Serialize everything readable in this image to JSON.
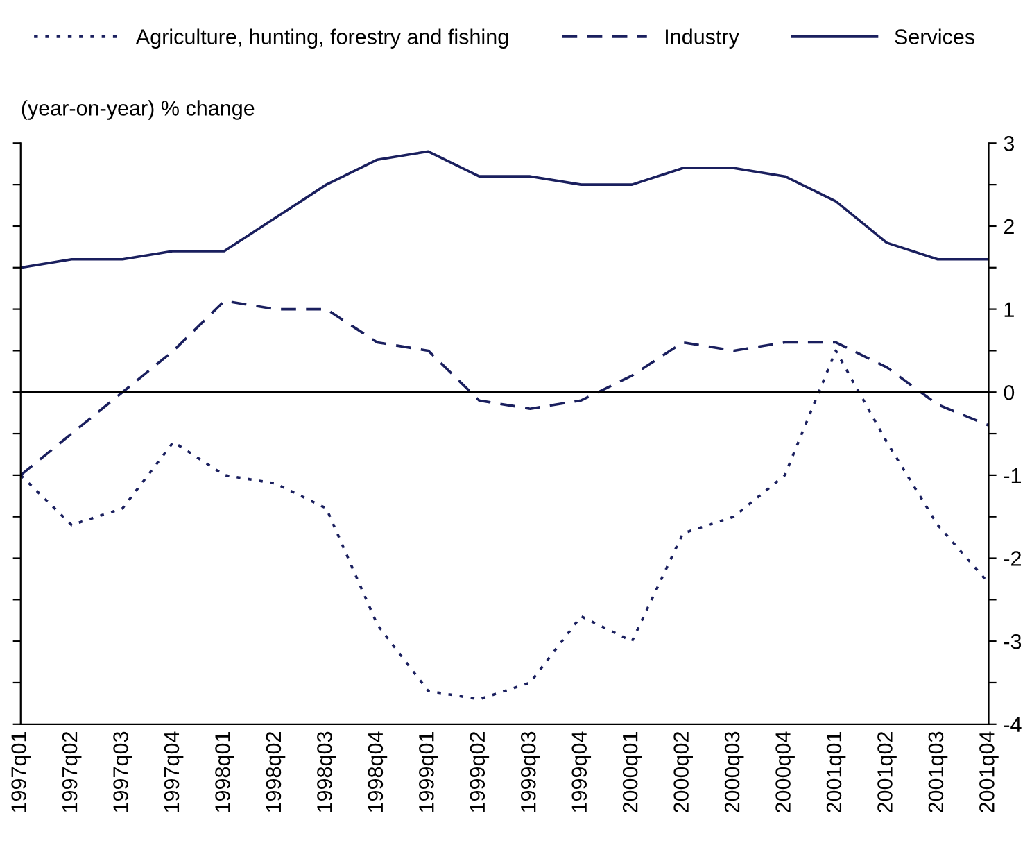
{
  "chart_data": {
    "type": "line",
    "ylabel": "(year-on-year) % change",
    "categories": [
      "1997q01",
      "1997q02",
      "1997q03",
      "1997q04",
      "1998q01",
      "1998q02",
      "1998q03",
      "1998q04",
      "1999q01",
      "1999q02",
      "1999q03",
      "1999q04",
      "2000q01",
      "2000q02",
      "2000q03",
      "2000q04",
      "2001q01",
      "2001q02",
      "2001q03",
      "2001q04"
    ],
    "series": [
      {
        "name": "Agriculture, hunting, forestry and fishing",
        "color": "#1a1f5e",
        "line_style": "dotted",
        "values": [
          -1.0,
          -1.6,
          -1.4,
          -0.6,
          -1.0,
          -1.1,
          -1.4,
          -2.8,
          -3.6,
          -3.7,
          -3.5,
          -2.7,
          -3.0,
          -1.7,
          -1.5,
          -1.0,
          0.5,
          -0.6,
          -1.6,
          -2.3
        ]
      },
      {
        "name": "Industry",
        "color": "#1a1f5e",
        "line_style": "dashed",
        "values": [
          -1.0,
          -0.5,
          0.0,
          0.5,
          1.1,
          1.0,
          1.0,
          0.6,
          0.5,
          -0.1,
          -0.2,
          -0.1,
          0.2,
          0.6,
          0.5,
          0.6,
          0.6,
          0.3,
          -0.15,
          -0.4
        ]
      },
      {
        "name": "Services",
        "color": "#1a1f5e",
        "line_style": "solid",
        "values": [
          1.5,
          1.6,
          1.6,
          1.7,
          1.7,
          2.1,
          2.5,
          2.8,
          2.9,
          2.6,
          2.6,
          2.5,
          2.5,
          2.7,
          2.7,
          2.6,
          2.3,
          1.8,
          1.6,
          1.6
        ]
      }
    ],
    "ylim": [
      -4,
      3
    ],
    "yticks": [
      -4,
      {
        "value": -3.5,
        "label": null
      },
      -3,
      {
        "value": -2.5,
        "label": null
      },
      -2,
      {
        "value": -1.5,
        "label": null
      },
      -1,
      {
        "value": -0.5,
        "label": null
      },
      0,
      {
        "value": 0.5,
        "label": null
      },
      1,
      {
        "value": 1.5,
        "label": null
      },
      2,
      {
        "value": 2.5,
        "label": null
      },
      3
    ],
    "ref_lines": [
      {
        "axis": "y",
        "value": 0,
        "color": "#000000",
        "line_style": "solid"
      }
    ],
    "legend": "top",
    "grid": false,
    "marker": "none"
  }
}
